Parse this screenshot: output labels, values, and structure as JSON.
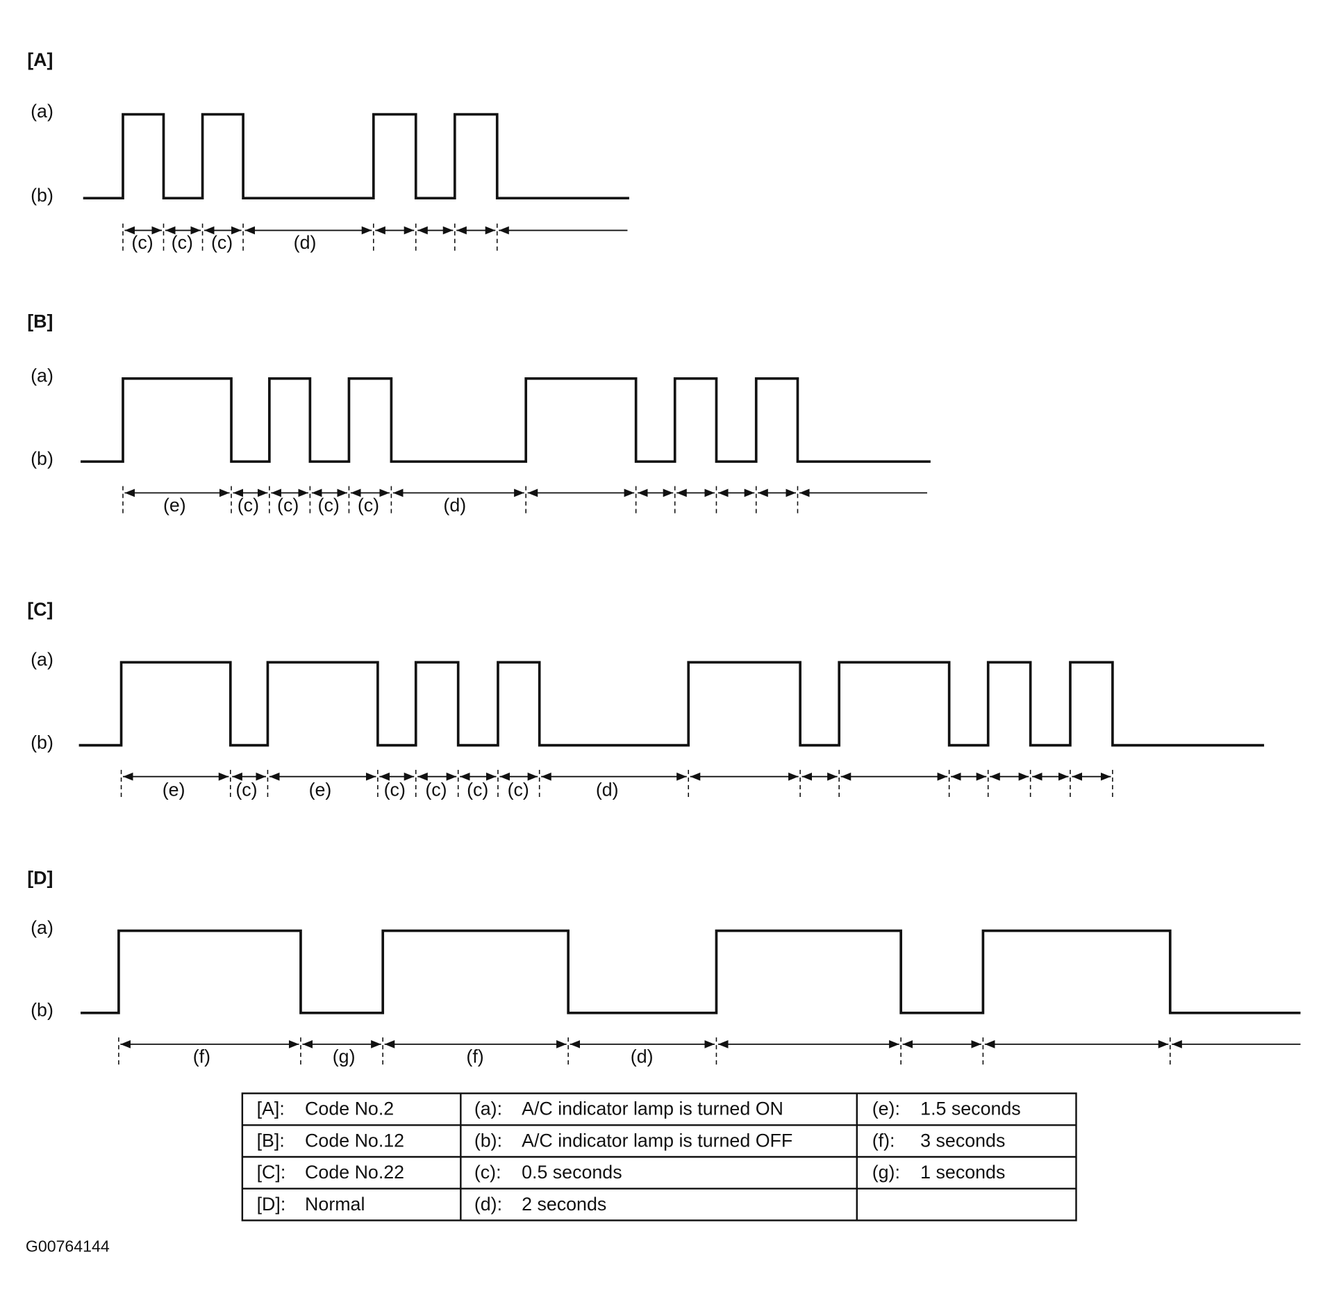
{
  "panels": [
    {
      "label": "[A]",
      "high": "(a)",
      "low": "(b)",
      "intervals": [
        "(c)",
        "(c)",
        "(c)",
        "(d)"
      ]
    },
    {
      "label": "[B]",
      "high": "(a)",
      "low": "(b)",
      "intervals": [
        "(e)",
        "(c)",
        "(c)",
        "(c)",
        "(c)",
        "(d)"
      ]
    },
    {
      "label": "[C]",
      "high": "(a)",
      "low": "(b)",
      "intervals": [
        "(e)",
        "(c)",
        "(e)",
        "(c)",
        "(c)",
        "(c)",
        "(c)",
        "(d)"
      ]
    },
    {
      "label": "[D]",
      "high": "(a)",
      "low": "(b)",
      "intervals": [
        "(f)",
        "(g)",
        "(f)",
        "(d)"
      ]
    }
  ],
  "legend_table": {
    "rows": [
      [
        [
          "[A]:",
          "Code No.2"
        ],
        [
          "(a):",
          "A/C indicator lamp is turned ON"
        ],
        [
          "(e):",
          "1.5 seconds"
        ]
      ],
      [
        [
          "[B]:",
          "Code No.12"
        ],
        [
          "(b):",
          "A/C indicator lamp is turned OFF"
        ],
        [
          "(f):",
          "3 seconds"
        ]
      ],
      [
        [
          "[C]:",
          "Code No.22"
        ],
        [
          "(c):",
          "0.5 seconds"
        ],
        [
          "(g):",
          "1 seconds"
        ]
      ],
      [
        [
          "[D]:",
          "Normal"
        ],
        [
          "(d):",
          "2 seconds"
        ]
      ]
    ]
  },
  "figure_code": "G00764144"
}
